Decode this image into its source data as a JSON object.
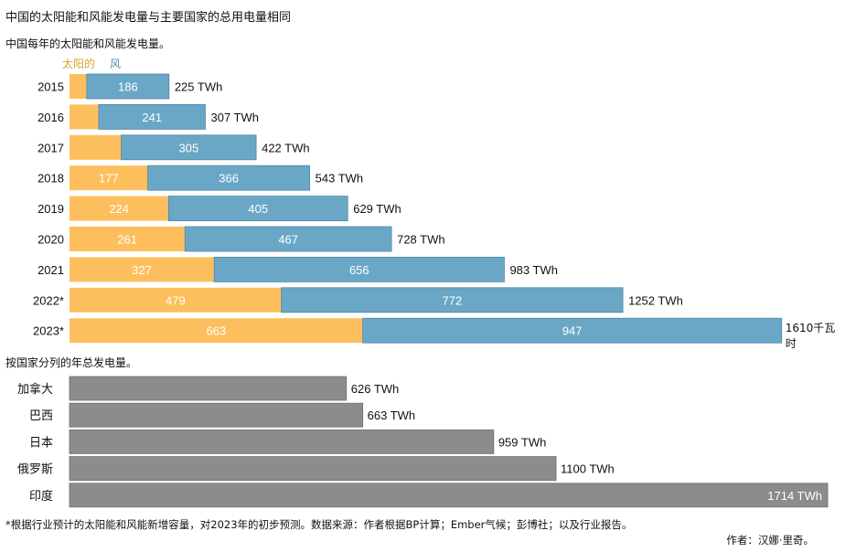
{
  "title": "中国的太阳能和风能发电量与主要国家的总用电量相同",
  "subtitle": "中国每年的太阳能和风能发电量。",
  "countries_title": "按国家分列的年总发电量。",
  "footnote": "*根据行业预计的太阳能和风能新增容量，对2023年的初步预测。数据来源：作者根据BP计算；Ember气候；彭博社；以及行业报告。",
  "author": "作者：汉娜·里奇。",
  "colors": {
    "solar": "#fdbf5e",
    "wind": "#6aa7c7",
    "country": "#8c8c8c"
  },
  "chart_data": [
    {
      "type": "bar",
      "orientation": "horizontal",
      "stacked": true,
      "legend_position": "top-left",
      "categories": [
        "2015",
        "2016",
        "2017",
        "2018",
        "2019",
        "2020",
        "2021",
        "2022*",
        "2023*"
      ],
      "series": [
        {
          "name": "太阳的",
          "values": [
            39,
            66,
            117,
            177,
            224,
            261,
            327,
            479,
            663
          ],
          "labels": [
            "",
            "",
            "",
            "177",
            "224",
            "261",
            "327",
            "479",
            "663"
          ]
        },
        {
          "name": "风",
          "values": [
            186,
            241,
            305,
            366,
            405,
            467,
            656,
            772,
            947
          ],
          "labels": [
            "186",
            "241",
            "305",
            "366",
            "405",
            "467",
            "656",
            "772",
            "947"
          ]
        }
      ],
      "total_labels": [
        "225 TWh",
        "307 TWh",
        "422 TWh",
        "543 TWh",
        "629 TWh",
        "728 TWh",
        "983 TWh",
        "1252 TWh",
        "1610千瓦时"
      ]
    },
    {
      "type": "bar",
      "orientation": "horizontal",
      "categories": [
        "加拿大",
        "巴西",
        "日本",
        "俄罗斯",
        "印度"
      ],
      "values": [
        626,
        663,
        959,
        1100,
        1714
      ],
      "value_labels": [
        "626 TWh",
        "663 TWh",
        "959 TWh",
        "1100 TWh",
        "1714 TWh"
      ]
    }
  ]
}
